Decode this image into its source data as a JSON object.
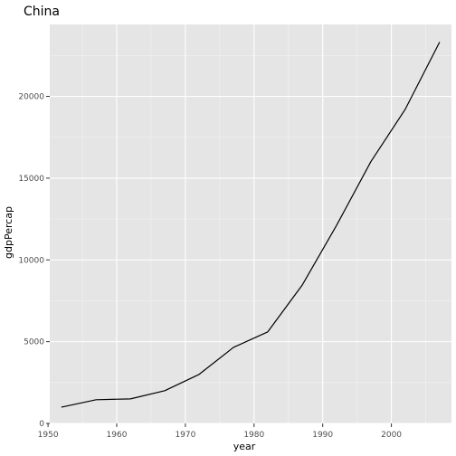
{
  "chart_data": {
    "type": "line",
    "title": "China",
    "xlabel": "year",
    "ylabel": "gdpPercap",
    "xlim": [
      1950.25,
      2008.75
    ],
    "ylim": [
      0,
      24400
    ],
    "grid": true,
    "x_ticks": [
      1950,
      1960,
      1970,
      1980,
      1990,
      2000
    ],
    "y_ticks": [
      0,
      5000,
      10000,
      15000,
      20000
    ],
    "x_tick_labels": [
      "1950",
      "1960",
      "1970",
      "1980",
      "1990",
      "2000"
    ],
    "y_tick_labels": [
      "0",
      "5000",
      "10000",
      "15000",
      "20000"
    ],
    "series": [
      {
        "x": [
          1952,
          1957,
          1962,
          1967,
          1972,
          1977,
          1982,
          1987,
          1992,
          1997,
          2002,
          2007
        ],
        "y": [
          1000,
          1450,
          1500,
          2000,
          3000,
          4650,
          5600,
          8450,
          12100,
          16000,
          19200,
          23300
        ]
      }
    ],
    "colors": {
      "panel_background": "#e5e5e5",
      "grid_major": "#ffffff",
      "line": "#000000",
      "tick_text": "#4d4d4d"
    }
  }
}
